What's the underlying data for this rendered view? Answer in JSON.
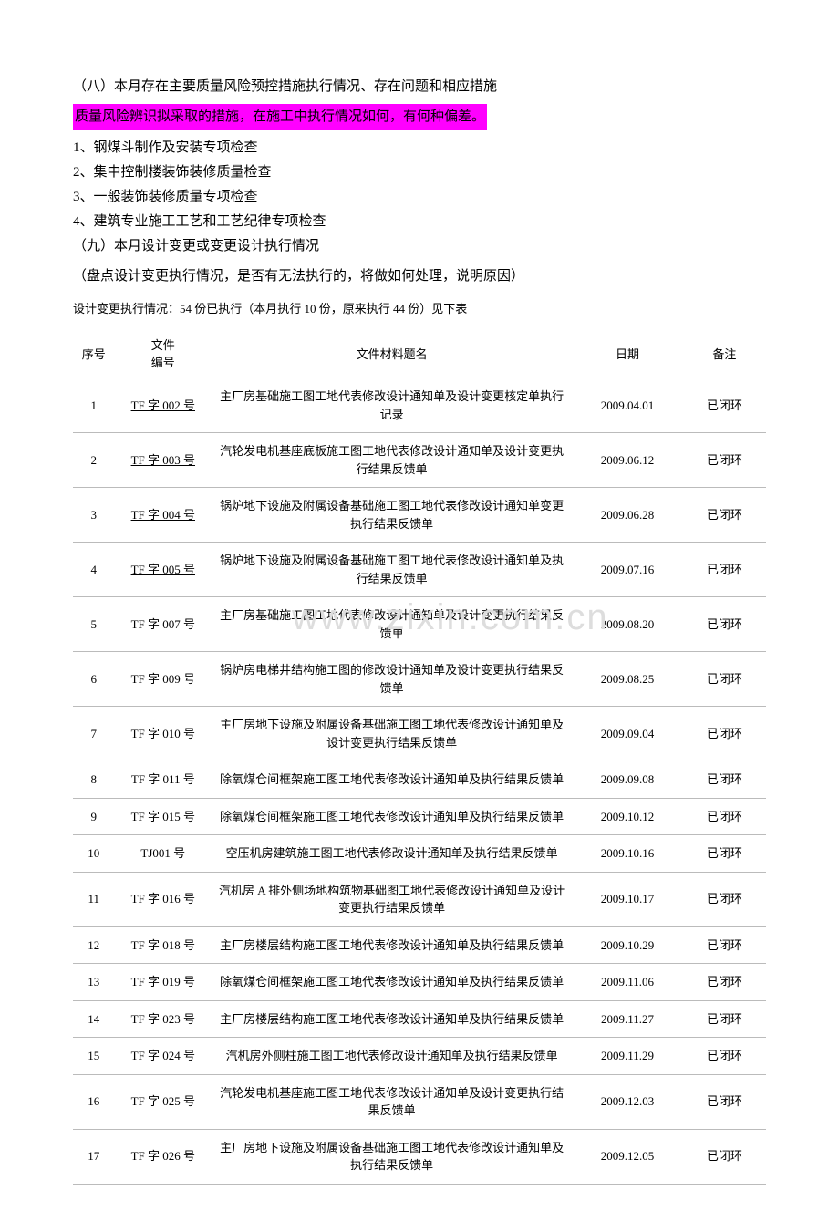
{
  "heading_8": "（八）本月存在主要质量风险预控措施执行情况、存在问题和相应措施",
  "highlighted_text": "质量风险辨识拟采取的措施，在施工中执行情况如何，有何种偏差。",
  "check_items": [
    "1、钢煤斗制作及安装专项检查",
    "2、集中控制楼装饰装修质量检查",
    "3、一般装饰装修质量专项检查",
    "4、建筑专业施工工艺和工艺纪律专项检查"
  ],
  "heading_9": "（九）本月设计变更或变更设计执行情况",
  "design_review_note": "（盘点设计变更执行情况，是否有无法执行的，将做如何处理，说明原因）",
  "execution_summary": "设计变更执行情况：54 份已执行（本月执行 10 份，原来执行 44 份）见下表",
  "watermark_text": "www.zixin.com.cn",
  "table": {
    "columns": [
      "序号",
      "文件\n编号",
      "文件材料题名",
      "日期",
      "备注"
    ],
    "rows": [
      {
        "seq": "1",
        "doc": "TF 字 002 号",
        "underline": true,
        "title": "主厂房基础施工图工地代表修改设计通知单及设计变更核定单执行记录",
        "date": "2009.04.01",
        "note": "已闭环"
      },
      {
        "seq": "2",
        "doc": "TF 字 003 号",
        "underline": true,
        "title": "汽轮发电机基座底板施工图工地代表修改设计通知单及设计变更执行结果反馈单",
        "date": "2009.06.12",
        "note": "已闭环"
      },
      {
        "seq": "3",
        "doc": "TF 字 004 号",
        "underline": true,
        "title": "锅炉地下设施及附属设备基础施工图工地代表修改设计通知单变更执行结果反馈单",
        "date": "2009.06.28",
        "note": "已闭环"
      },
      {
        "seq": "4",
        "doc": "TF 字 005 号",
        "underline": true,
        "title": "锅炉地下设施及附属设备基础施工图工地代表修改设计通知单及执行结果反馈单",
        "date": "2009.07.16",
        "note": "已闭环"
      },
      {
        "seq": "5",
        "doc": "TF 字 007 号",
        "underline": false,
        "title": "主厂房基础施工图工地代表修改设计通知单及设计变更执行结果反馈单",
        "date": "2009.08.20",
        "note": "已闭环"
      },
      {
        "seq": "6",
        "doc": "TF 字 009 号",
        "underline": false,
        "title": "锅炉房电梯井结构施工图的修改设计通知单及设计变更执行结果反馈单",
        "date": "2009.08.25",
        "note": "已闭环"
      },
      {
        "seq": "7",
        "doc": "TF 字 010 号",
        "underline": false,
        "title": "主厂房地下设施及附属设备基础施工图工地代表修改设计通知单及设计变更执行结果反馈单",
        "date": "2009.09.04",
        "note": "已闭环"
      },
      {
        "seq": "8",
        "doc": "TF 字 011 号",
        "underline": false,
        "title": "除氧煤仓间框架施工图工地代表修改设计通知单及执行结果反馈单",
        "date": "2009.09.08",
        "note": "已闭环"
      },
      {
        "seq": "9",
        "doc": "TF 字 015 号",
        "underline": false,
        "title": "除氧煤仓间框架施工图工地代表修改设计通知单及执行结果反馈单",
        "date": "2009.10.12",
        "note": "已闭环"
      },
      {
        "seq": "10",
        "doc": "TJ001 号",
        "underline": false,
        "title": "空压机房建筑施工图工地代表修改设计通知单及执行结果反馈单",
        "date": "2009.10.16",
        "note": "已闭环"
      },
      {
        "seq": "11",
        "doc": "TF 字 016 号",
        "underline": false,
        "title": "汽机房 A 排外侧场地构筑物基础图工地代表修改设计通知单及设计变更执行结果反馈单",
        "date": "2009.10.17",
        "note": "已闭环"
      },
      {
        "seq": "12",
        "doc": "TF 字 018 号",
        "underline": false,
        "title": "主厂房楼层结构施工图工地代表修改设计通知单及执行结果反馈单",
        "date": "2009.10.29",
        "note": "已闭环"
      },
      {
        "seq": "13",
        "doc": "TF 字 019 号",
        "underline": false,
        "title": "除氧煤仓间框架施工图工地代表修改设计通知单及执行结果反馈单",
        "date": "2009.11.06",
        "note": "已闭环"
      },
      {
        "seq": "14",
        "doc": "TF 字 023 号",
        "underline": false,
        "title": "主厂房楼层结构施工图工地代表修改设计通知单及执行结果反馈单",
        "date": "2009.11.27",
        "note": "已闭环"
      },
      {
        "seq": "15",
        "doc": "TF 字 024 号",
        "underline": false,
        "title": "汽机房外侧柱施工图工地代表修改设计通知单及执行结果反馈单",
        "date": "2009.11.29",
        "note": "已闭环"
      },
      {
        "seq": "16",
        "doc": "TF 字 025 号",
        "underline": false,
        "title": "汽轮发电机基座施工图工地代表修改设计通知单及设计变更执行结果反馈单",
        "date": "2009.12.03",
        "note": "已闭环"
      },
      {
        "seq": "17",
        "doc": "TF 字 026 号",
        "underline": false,
        "title": "主厂房地下设施及附属设备基础施工图工地代表修改设计通知单及执行结果反馈单",
        "date": "2009.12.05",
        "note": "已闭环"
      }
    ]
  }
}
